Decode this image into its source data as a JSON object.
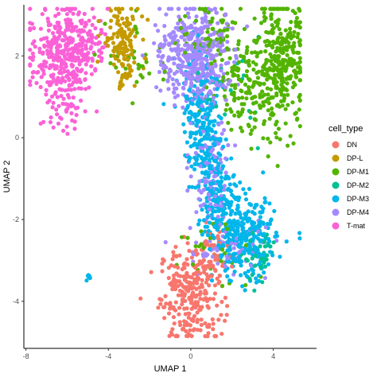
{
  "chart_data": {
    "type": "scatter",
    "title": "",
    "xlabel": "UMAP 1",
    "ylabel": "UMAP 2",
    "xlim": [
      -8.1,
      6.1
    ],
    "ylim": [
      -5.15,
      3.25
    ],
    "x_ticks": [
      -8,
      -4,
      0,
      4
    ],
    "y_ticks": [
      -4,
      -2,
      0,
      2
    ],
    "x_tick_labels": [
      "-8",
      "-4",
      "0",
      "4"
    ],
    "y_tick_labels": [
      "-4",
      "-2",
      "0",
      "2"
    ],
    "grid": false,
    "legend": {
      "title": "cell_type",
      "placement": "right",
      "entries": [
        "DN",
        "DP-L",
        "DP-M1",
        "DP-M2",
        "DP-M3",
        "DP-M4",
        "T-mat"
      ]
    },
    "series": [
      {
        "name": "DN",
        "color": "#F8766D",
        "clusters": [
          {
            "cx": 0.0,
            "cy": -3.85,
            "sx": 0.75,
            "sy": 0.6,
            "n": 260
          },
          {
            "cx": 0.9,
            "cy": -3.0,
            "sx": 0.45,
            "sy": 0.35,
            "n": 60
          }
        ]
      },
      {
        "name": "DP-L",
        "color": "#C49A00",
        "clusters": [
          {
            "cx": -3.4,
            "cy": 2.45,
            "sx": 0.45,
            "sy": 0.45,
            "n": 120
          },
          {
            "cx": -3.2,
            "cy": 1.6,
            "sx": 0.35,
            "sy": 0.3,
            "n": 25
          }
        ]
      },
      {
        "name": "DP-M1",
        "color": "#53B400",
        "clusters": [
          {
            "cx": 4.4,
            "cy": 1.8,
            "sx": 0.55,
            "sy": 0.75,
            "n": 320
          },
          {
            "cx": 2.6,
            "cy": 1.3,
            "sx": 0.85,
            "sy": 0.6,
            "n": 140
          },
          {
            "cx": 1.2,
            "cy": 2.6,
            "sx": 0.9,
            "sy": 0.35,
            "n": 60
          },
          {
            "cx": -2.5,
            "cy": 2.0,
            "sx": 0.8,
            "sy": 0.5,
            "n": 35
          },
          {
            "cx": 1.0,
            "cy": -2.9,
            "sx": 1.1,
            "sy": 0.5,
            "n": 30
          }
        ]
      },
      {
        "name": "DP-M2",
        "color": "#00C094",
        "clusters": [
          {
            "cx": 3.4,
            "cy": -2.9,
            "sx": 0.4,
            "sy": 0.3,
            "n": 45
          },
          {
            "cx": 1.8,
            "cy": 1.2,
            "sx": 0.8,
            "sy": 0.6,
            "n": 25
          }
        ]
      },
      {
        "name": "DP-M3",
        "color": "#00B6EB",
        "clusters": [
          {
            "cx": 2.6,
            "cy": -2.5,
            "sx": 0.75,
            "sy": 0.5,
            "n": 300
          },
          {
            "cx": 1.3,
            "cy": -1.35,
            "sx": 0.45,
            "sy": 0.55,
            "n": 170
          },
          {
            "cx": 0.6,
            "cy": 0.1,
            "sx": 0.45,
            "sy": 0.55,
            "n": 160
          },
          {
            "cx": 0.4,
            "cy": 1.3,
            "sx": 0.55,
            "sy": 0.5,
            "n": 60
          },
          {
            "cx": -4.95,
            "cy": -3.4,
            "sx": 0.06,
            "sy": 0.05,
            "n": 8
          }
        ]
      },
      {
        "name": "DP-M4",
        "color": "#A58AFF",
        "clusters": [
          {
            "cx": 0.25,
            "cy": 2.0,
            "sx": 0.75,
            "sy": 0.6,
            "n": 420
          },
          {
            "cx": 0.9,
            "cy": -0.9,
            "sx": 0.45,
            "sy": 0.8,
            "n": 110
          },
          {
            "cx": 1.8,
            "cy": -2.7,
            "sx": 1.0,
            "sy": 0.4,
            "n": 60
          },
          {
            "cx": -1.0,
            "cy": 2.3,
            "sx": 0.5,
            "sy": 0.4,
            "n": 40
          }
        ]
      },
      {
        "name": "T-mat",
        "color": "#FB61D7",
        "clusters": [
          {
            "cx": -6.3,
            "cy": 2.0,
            "sx": 0.75,
            "sy": 0.6,
            "n": 330
          },
          {
            "cx": -5.1,
            "cy": 2.35,
            "sx": 0.55,
            "sy": 0.35,
            "n": 90
          },
          {
            "cx": -6.2,
            "cy": 0.55,
            "sx": 0.35,
            "sy": 0.25,
            "n": 25
          }
        ]
      }
    ]
  }
}
